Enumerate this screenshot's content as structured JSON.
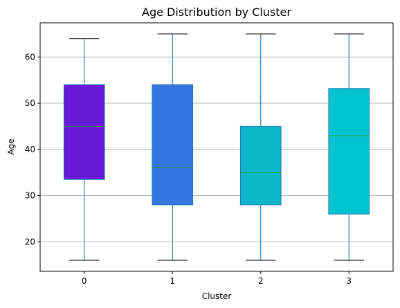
{
  "chart_data": {
    "type": "box",
    "title": "Age Distribution by Cluster",
    "xlabel": "Cluster",
    "ylabel": "Age",
    "categories": [
      "0",
      "1",
      "2",
      "3"
    ],
    "boxes": [
      {
        "category": "0",
        "whisker_low": 16,
        "q1": 33.5,
        "median": 45,
        "q3": 54,
        "whisker_high": 64,
        "color": "#6619d6"
      },
      {
        "category": "1",
        "whisker_low": 16,
        "q1": 28,
        "median": 36,
        "q3": 54,
        "whisker_high": 65,
        "color": "#3475e2"
      },
      {
        "category": "2",
        "whisker_low": 16,
        "q1": 28,
        "median": 35,
        "q3": 45,
        "whisker_high": 65,
        "color": "#0db6c8"
      },
      {
        "category": "3",
        "whisker_low": 16,
        "q1": 26,
        "median": 43,
        "q3": 53.2,
        "whisker_high": 65,
        "color": "#00c3d2"
      }
    ],
    "ylim": [
      13.6,
      67.4
    ],
    "yticks": [
      20,
      30,
      40,
      50,
      60
    ],
    "grid": "horizontal",
    "colors": {
      "whisker": "#1f77b4",
      "median": "#2ca02c",
      "box_edge": "#1f77b4",
      "cap": "#000000",
      "grid": "#b0b0b0"
    }
  }
}
